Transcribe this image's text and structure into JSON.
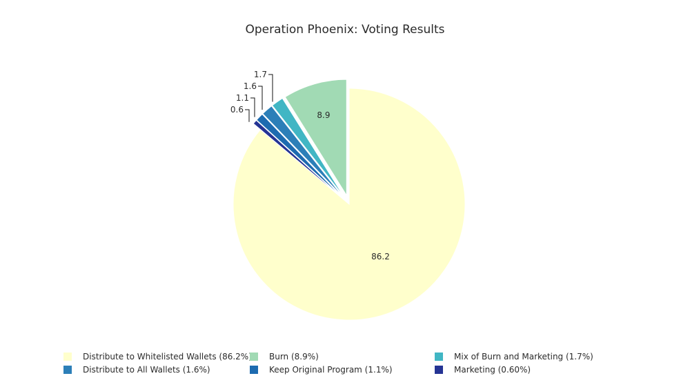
{
  "chart_data": {
    "type": "pie",
    "title": "Operation Phoenix: Voting Results",
    "slices": [
      {
        "label": "Distribute to Whitelisted Wallets",
        "value": 86.2,
        "legend": "Distribute to Whitelisted Wallets (86.2%)",
        "color": "#ffffcc"
      },
      {
        "label": "Burn",
        "value": 8.9,
        "legend": "Burn (8.9%)",
        "color": "#a1dab4"
      },
      {
        "label": "Mix of Burn and Marketing",
        "value": 1.7,
        "legend": "Mix of Burn and Marketing (1.7%)",
        "color": "#41b6c4"
      },
      {
        "label": "Distribute to All Wallets",
        "value": 1.6,
        "legend": "Distribute to All Wallets (1.6%)",
        "color": "#2c7fb8"
      },
      {
        "label": "Keep Original Program",
        "value": 1.1,
        "legend": "Keep Original Program (1.1%)",
        "color": "#1d6bb0"
      },
      {
        "label": "Marketing",
        "value": 0.6,
        "legend": "Marketing (0.60%)",
        "color": "#253494"
      }
    ],
    "data_labels": [
      "86.2",
      "8.9",
      "1.7",
      "1.6",
      "1.1",
      "0.6"
    ],
    "legend_position": "bottom",
    "exploded": [
      "Burn",
      "Mix of Burn and Marketing",
      "Distribute to All Wallets",
      "Keep Original Program",
      "Marketing"
    ]
  }
}
